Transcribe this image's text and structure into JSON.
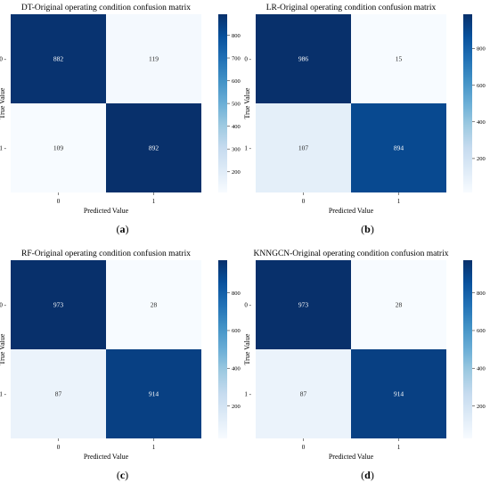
{
  "colormap": [
    "#f7fbff",
    "#deebf7",
    "#c6dbef",
    "#9ecae1",
    "#6baed6",
    "#4292c6",
    "#2171b5",
    "#08519c",
    "#08306b"
  ],
  "chart_data": [
    {
      "type": "heatmap",
      "title": "DT-Original operating condition confusion matrix",
      "xlabel": "Predicted Value",
      "ylabel": "True Value",
      "x_categories": [
        "0",
        "1"
      ],
      "y_categories": [
        "0",
        "1"
      ],
      "matrix": [
        [
          882,
          119
        ],
        [
          109,
          892
        ]
      ],
      "colorbar": {
        "range": [
          109,
          892
        ],
        "ticks": [
          200,
          300,
          400,
          500,
          600,
          700,
          800
        ]
      },
      "caption": [
        "(",
        "a",
        ")"
      ]
    },
    {
      "type": "heatmap",
      "title": "LR-Original operating condition confusion matrix",
      "xlabel": "Predicted Value",
      "ylabel": "True Value",
      "x_categories": [
        "0",
        "1"
      ],
      "y_categories": [
        "0",
        "1"
      ],
      "matrix": [
        [
          986,
          15
        ],
        [
          107,
          894
        ]
      ],
      "colorbar": {
        "range": [
          15,
          986
        ],
        "ticks": [
          200,
          400,
          600,
          800
        ]
      },
      "caption": [
        "(",
        "b",
        ")"
      ]
    },
    {
      "type": "heatmap",
      "title": "RF-Original operating condition confusion matrix",
      "xlabel": "Predicted Value",
      "ylabel": "True Value",
      "x_categories": [
        "0",
        "1"
      ],
      "y_categories": [
        "0",
        "1"
      ],
      "matrix": [
        [
          973,
          28
        ],
        [
          87,
          914
        ]
      ],
      "colorbar": {
        "range": [
          28,
          973
        ],
        "ticks": [
          200,
          400,
          600,
          800
        ]
      },
      "caption": [
        "(",
        "c",
        ")"
      ]
    },
    {
      "type": "heatmap",
      "title": "KNNGCN-Original operating condition confusion matrix",
      "xlabel": "Predicted Value",
      "ylabel": "True Value",
      "x_categories": [
        "0",
        "1"
      ],
      "y_categories": [
        "0",
        "1"
      ],
      "matrix": [
        [
          973,
          28
        ],
        [
          87,
          914
        ]
      ],
      "colorbar": {
        "range": [
          28,
          973
        ],
        "ticks": [
          200,
          400,
          600,
          800
        ]
      },
      "caption": [
        "(",
        "d",
        ")"
      ]
    }
  ]
}
